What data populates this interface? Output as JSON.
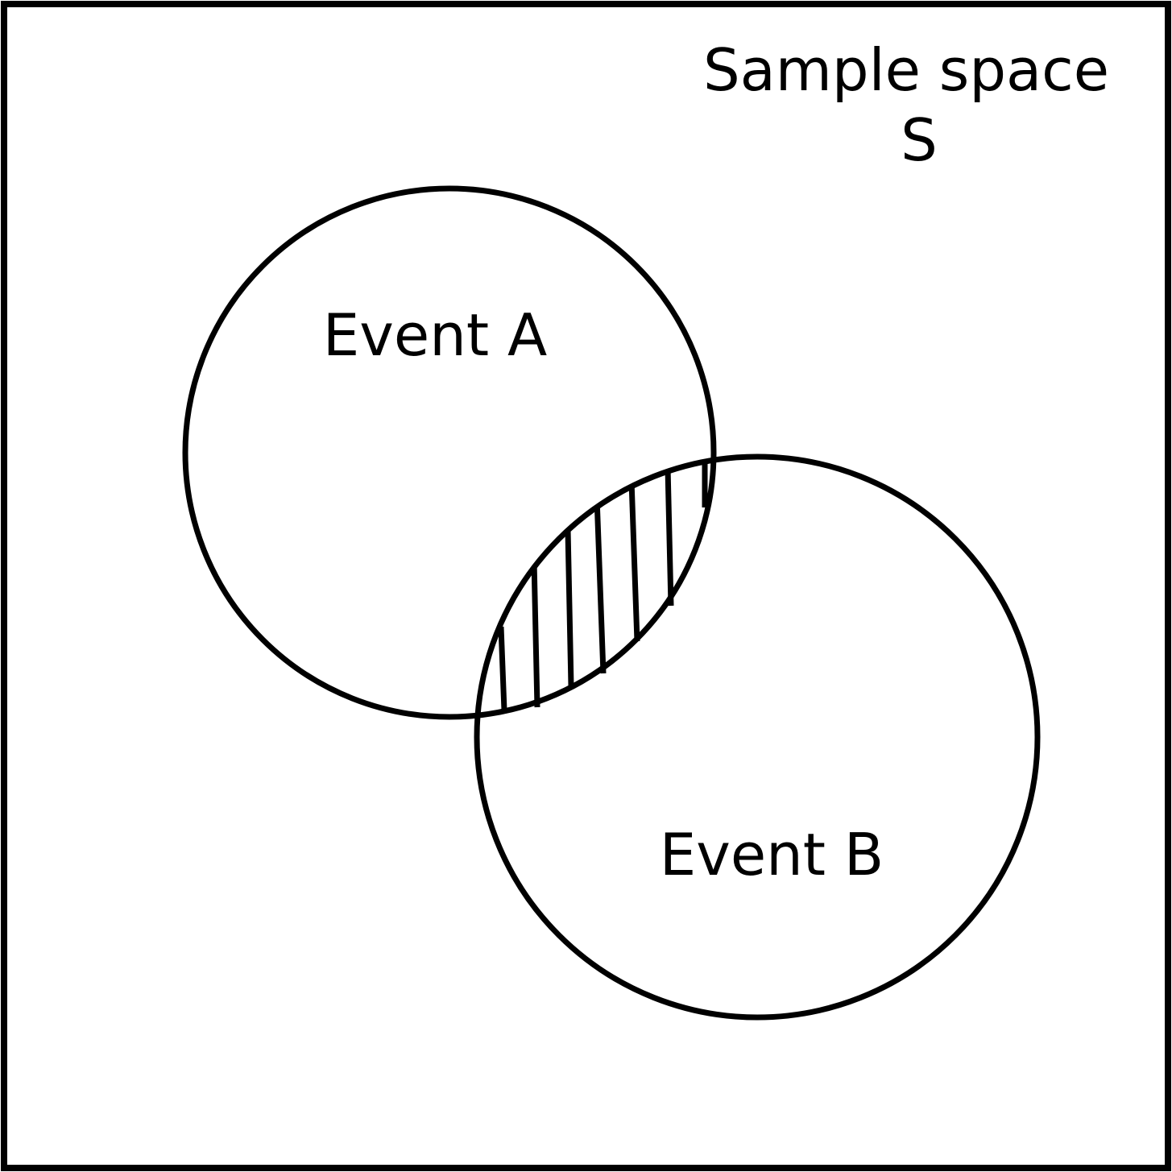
{
  "title": "Venn diagram of two overlapping events",
  "sample_space": {
    "label_line1": "Sample space",
    "label_line2": "S"
  },
  "events": [
    {
      "label": "Event A"
    },
    {
      "label": "Event B"
    }
  ],
  "colors": {
    "stroke": "#000000",
    "background": "#ffffff"
  }
}
